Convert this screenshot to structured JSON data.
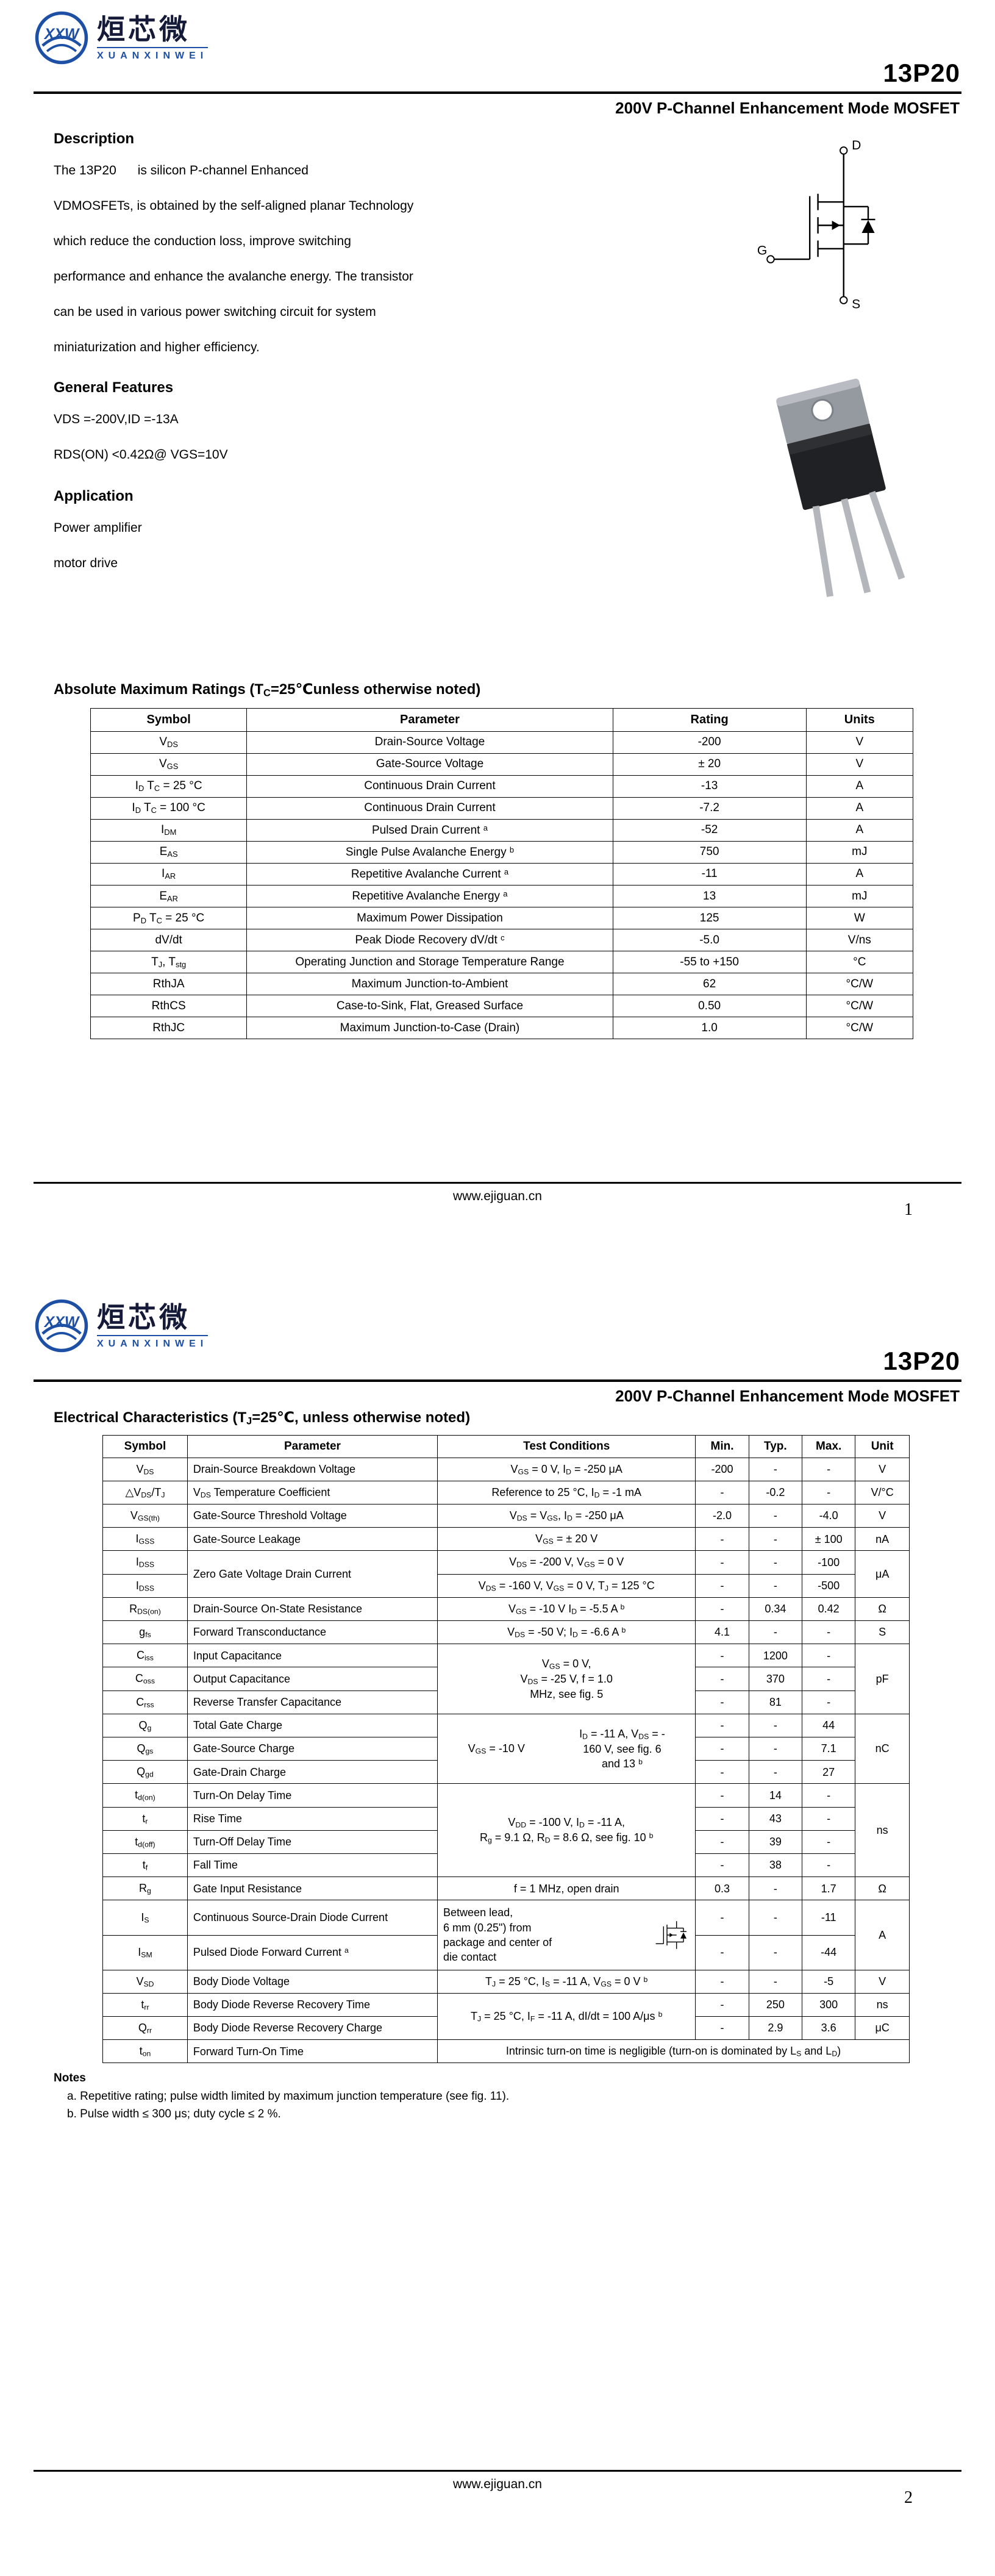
{
  "brand": {
    "logo_monogram": "XXW",
    "company_cn": "烜芯微",
    "company_en": "XUANXINWEI"
  },
  "part_number": "13P20",
  "subtitle": "200V P-Channel Enhancement Mode MOSFET",
  "footer": {
    "url": "www.ejiguan.cn",
    "page1_number": "1",
    "page2_number": "2"
  },
  "page1": {
    "description_heading": "Description",
    "description_lines": [
      "The 13P20      is silicon P-channel Enhanced",
      "VDMOSFETs, is obtained by the self-aligned planar Technology",
      "which reduce the conduction loss, improve switching",
      "performance and enhance the avalanche energy. The transistor",
      "can be used in various power switching circuit for system",
      "miniaturization and higher efficiency."
    ],
    "features_heading": "General Features",
    "features_lines": [
      "VDS =-200V,ID =-13A",
      "RDS(ON) <0.42Ω@ VGS=10V"
    ],
    "application_heading": "Application",
    "application_lines": [
      "Power amplifier",
      "motor drive"
    ],
    "mosfet_symbol": {
      "drain": "D",
      "gate": "G",
      "source": "S"
    },
    "abs_max": {
      "heading": "Absolute Maximum Ratings (T<sub>C</sub>=25℃unless otherwise noted)",
      "headers": [
        "Symbol",
        "Parameter",
        "Rating",
        "Units"
      ],
      "rows": [
        {
          "symbol": "V<sub>DS</sub>",
          "parameter": "Drain-Source Voltage",
          "rating": "-200",
          "units": "V"
        },
        {
          "symbol": "V<sub>GS</sub>",
          "parameter": "Gate-Source Voltage",
          "rating": "± 20",
          "units": "V"
        },
        {
          "symbol": "I<sub>D</sub> T<sub>C</sub> = 25 °C",
          "parameter": "Continuous Drain Current",
          "rating": "-13",
          "units": "A"
        },
        {
          "symbol": "I<sub>D</sub> T<sub>C</sub> = 100 °C",
          "parameter": "Continuous Drain Current",
          "rating": "-7.2",
          "units": "A"
        },
        {
          "symbol": "I<sub>DM</sub>",
          "parameter": "Pulsed Drain Current <sup>a</sup>",
          "rating": "-52",
          "units": "A"
        },
        {
          "symbol": "E<sub>AS</sub>",
          "parameter": "Single Pulse Avalanche Energy <sup>b</sup>",
          "rating": "750",
          "units": "mJ"
        },
        {
          "symbol": "I<sub>AR</sub>",
          "parameter": "Repetitive Avalanche Current <sup>a</sup>",
          "rating": "-11",
          "units": "A"
        },
        {
          "symbol": "E<sub>AR</sub>",
          "parameter": "Repetitive Avalanche Energy <sup>a</sup>",
          "rating": "13",
          "units": "mJ"
        },
        {
          "symbol": "P<sub>D</sub> T<sub>C</sub> = 25 °C",
          "parameter": "Maximum Power Dissipation",
          "rating": "125",
          "units": "W"
        },
        {
          "symbol": "dV/dt",
          "parameter": "Peak Diode Recovery dV/dt <sup>c</sup>",
          "rating": "-5.0",
          "units": "V/ns"
        },
        {
          "symbol": "T<sub>J</sub>, T<sub>stg</sub>",
          "parameter": "Operating Junction and Storage Temperature Range",
          "rating": "-55 to +150",
          "units": "°C"
        },
        {
          "symbol": "RthJA",
          "parameter": "Maximum Junction-to-Ambient",
          "rating": "62",
          "units": "°C/W"
        },
        {
          "symbol": "RthCS",
          "parameter": "Case-to-Sink, Flat, Greased Surface",
          "rating": "0.50",
          "units": "°C/W"
        },
        {
          "symbol": "RthJC",
          "parameter": "Maximum Junction-to-Case (Drain)",
          "rating": "1.0",
          "units": "°C/W"
        }
      ]
    }
  },
  "page2": {
    "elec": {
      "heading": "Electrical Characteristics (T<sub>J</sub>=25℃, unless otherwise noted)",
      "headers": [
        "Symbol",
        "Parameter",
        "Test Conditions",
        "Min.",
        "Typ.",
        "Max.",
        "Unit"
      ],
      "vds_bv": {
        "symbol": "V<sub>DS</sub>",
        "parameter": "Drain-Source Breakdown Voltage",
        "cond": "V<sub>GS</sub> = 0 V, I<sub>D</sub> = -250 μA",
        "min": "-200",
        "typ": "-",
        "max": "-",
        "unit": "V"
      },
      "dvds_tj": {
        "symbol": "△V<sub>DS</sub>/T<sub>J</sub>",
        "parameter": "V<sub>DS</sub> Temperature Coefficient",
        "cond": "Reference to 25 °C, I<sub>D</sub> = -1 mA",
        "min": "-",
        "typ": "-0.2",
        "max": "-",
        "unit": "V/°C"
      },
      "vgs_th": {
        "symbol": "V<sub>GS(th)</sub>",
        "parameter": "Gate-Source Threshold Voltage",
        "cond": "V<sub>DS</sub> = V<sub>GS</sub>, I<sub>D</sub> = -250 μA",
        "min": "-2.0",
        "typ": "-",
        "max": "-4.0",
        "unit": "V"
      },
      "igss": {
        "symbol": "I<sub>GSS</sub>",
        "parameter": "Gate-Source Leakage",
        "cond": "V<sub>GS</sub> = ± 20 V",
        "min": "-",
        "typ": "-",
        "max": "± 100",
        "unit": "nA"
      },
      "idss": {
        "parameter": "Zero Gate Voltage Drain Current",
        "unit": "μA",
        "rows": [
          {
            "symbol": "I<sub>DSS</sub>",
            "cond": "V<sub>DS</sub> = -200 V, V<sub>GS</sub> = 0 V",
            "min": "-",
            "typ": "-",
            "max": "-100"
          },
          {
            "symbol": "I<sub>DSS</sub>",
            "cond": "V<sub>DS</sub> = -160 V, V<sub>GS</sub> = 0 V, T<sub>J</sub> = 125 °C",
            "min": "-",
            "typ": "-",
            "max": "-500"
          }
        ]
      },
      "rds_on": {
        "symbol": "R<sub>DS(on)</sub>",
        "parameter": "Drain-Source On-State Resistance",
        "cond": "V<sub>GS</sub> = -10 V I<sub>D</sub> = -5.5 A <sup>b</sup>",
        "min": "-",
        "typ": "0.34",
        "max": "0.42",
        "unit": "Ω"
      },
      "gfs": {
        "symbol": "g<sub>fs</sub>",
        "parameter": "Forward Transconductance",
        "cond": "V<sub>DS</sub> = -50 V; I<sub>D</sub> = -6.6 A <sup>b</sup>",
        "min": "4.1",
        "typ": "-",
        "max": "-",
        "unit": "S"
      },
      "cap": {
        "cond": "V<sub>GS</sub> = 0 V,<br>V<sub>DS</sub> = -25 V, f = 1.0<br>MHz, see fig. 5",
        "unit": "pF",
        "rows": [
          {
            "symbol": "C<sub>iss</sub>",
            "parameter": "Input Capacitance",
            "min": "-",
            "typ": "1200",
            "max": "-"
          },
          {
            "symbol": "C<sub>oss</sub>",
            "parameter": "Output Capacitance",
            "min": "-",
            "typ": "370",
            "max": "-"
          },
          {
            "symbol": "C<sub>rss</sub>",
            "parameter": "Reverse Transfer Capacitance",
            "min": "-",
            "typ": "81",
            "max": "-"
          }
        ]
      },
      "charge": {
        "cond_left": "V<sub>GS</sub> = -10 V",
        "cond_right": "I<sub>D</sub> = -11 A, V<sub>DS</sub> = -<br>160 V, see fig. 6<br>and 13 <sup>b</sup>",
        "unit": "nC",
        "rows": [
          {
            "symbol": "Q<sub>g</sub>",
            "parameter": "Total Gate Charge",
            "min": "-",
            "typ": "-",
            "max": "44"
          },
          {
            "symbol": "Q<sub>gs</sub>",
            "parameter": "Gate-Source Charge",
            "min": "-",
            "typ": "-",
            "max": "7.1"
          },
          {
            "symbol": "Q<sub>gd</sub>",
            "parameter": "Gate-Drain Charge",
            "min": "-",
            "typ": "-",
            "max": "27"
          }
        ]
      },
      "switching": {
        "cond": "V<sub>DD</sub> = -100 V, I<sub>D</sub> = -11 A,<br>R<sub>g</sub> = 9.1 Ω, R<sub>D</sub> = 8.6 Ω, see fig. 10 <sup>b</sup>",
        "unit": "ns",
        "rows": [
          {
            "symbol": "t<sub>d(on)</sub>",
            "parameter": "Turn-On Delay Time",
            "min": "-",
            "typ": "14",
            "max": "-"
          },
          {
            "symbol": "t<sub>r</sub>",
            "parameter": "Rise Time",
            "min": "-",
            "typ": "43",
            "max": "-"
          },
          {
            "symbol": "t<sub>d(off)</sub>",
            "parameter": "Turn-Off Delay Time",
            "min": "-",
            "typ": "39",
            "max": "-"
          },
          {
            "symbol": "t<sub>f</sub>",
            "parameter": "Fall Time",
            "min": "-",
            "typ": "38",
            "max": "-"
          }
        ]
      },
      "rg": {
        "symbol": "R<sub>g</sub>",
        "parameter": "Gate Input Resistance",
        "cond": "f = 1 MHz, open drain",
        "min": "0.3",
        "typ": "-",
        "max": "1.7",
        "unit": "Ω"
      },
      "diode_current": {
        "cond": "Between lead,<br>6 mm (0.25\") from<br>package and center of<br>die contact",
        "unit": "A",
        "rows": [
          {
            "symbol": "I<sub>S</sub>",
            "parameter": "Continuous Source-Drain Diode Current",
            "min": "-",
            "typ": "-",
            "max": "-11"
          },
          {
            "symbol": "I<sub>SM</sub>",
            "parameter": "Pulsed Diode Forward Current <sup>a</sup>",
            "min": "-",
            "typ": "-",
            "max": "-44"
          }
        ]
      },
      "vsd": {
        "symbol": "V<sub>SD</sub>",
        "parameter": "Body Diode Voltage",
        "cond": "T<sub>J</sub> = 25 °C, I<sub>S</sub> = -11 A, V<sub>GS</sub> = 0 V <sup>b</sup>",
        "min": "-",
        "typ": "-",
        "max": "-5",
        "unit": "V"
      },
      "recovery": {
        "cond": "T<sub>J</sub> = 25 °C, I<sub>F</sub> = -11 A, dI/dt = 100 A/μs <sup>b</sup>",
        "rows": [
          {
            "symbol": "t<sub>rr</sub>",
            "parameter": "Body Diode Reverse Recovery Time",
            "min": "-",
            "typ": "250",
            "max": "300",
            "unit": "ns"
          },
          {
            "symbol": "Q<sub>rr</sub>",
            "parameter": "Body Diode Reverse Recovery Charge",
            "min": "-",
            "typ": "2.9",
            "max": "3.6",
            "unit": "μC"
          }
        ]
      },
      "ton": {
        "symbol": "t<sub>on</sub>",
        "parameter": "Forward Turn-On Time",
        "note": "Intrinsic turn-on time is negligible (turn-on is dominated by L<sub>S</sub> and L<sub>D</sub>)"
      }
    },
    "notes_heading": "Notes",
    "notes": [
      "a.  Repetitive rating; pulse width limited by maximum junction temperature (see fig. 11).",
      "b.  Pulse width ≤ 300 μs; duty cycle ≤ 2 %."
    ]
  }
}
